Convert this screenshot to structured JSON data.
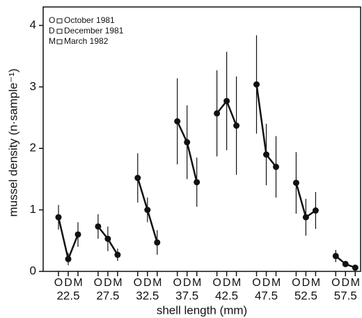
{
  "chart_data": {
    "type": "errorbar",
    "x_label": "shell length (mm)",
    "y_label": "mussel density (n·sample⁻¹)",
    "categories": [
      "22.5",
      "27.5",
      "32.5",
      "37.5",
      "42.5",
      "47.5",
      "52.5",
      "57.5"
    ],
    "series": [
      {
        "name": "October 1981",
        "label": "O",
        "color": "#111111",
        "values": [
          0.88,
          0.73,
          1.52,
          2.44,
          2.57,
          3.04,
          1.44,
          0.25
        ],
        "errors": [
          0.2,
          0.2,
          0.4,
          0.7,
          0.7,
          0.8,
          0.5,
          0.1
        ]
      },
      {
        "name": "December 1981",
        "label": "D",
        "color": "#111111",
        "values": [
          0.2,
          0.53,
          1.0,
          2.1,
          2.77,
          1.9,
          0.88,
          0.12
        ],
        "errors": [
          0.1,
          0.2,
          0.2,
          0.6,
          0.8,
          0.5,
          0.3,
          0.05
        ]
      },
      {
        "name": "March 1982",
        "label": "M",
        "color": "#111111",
        "values": [
          0.6,
          0.27,
          0.47,
          1.45,
          2.37,
          1.7,
          0.99,
          0.06
        ],
        "errors": [
          0.2,
          0.1,
          0.2,
          0.4,
          0.8,
          0.5,
          0.3,
          0.03
        ]
      }
    ],
    "ylim": [
      0,
      4.3
    ],
    "yticks": [
      0,
      1,
      2,
      3,
      4
    ],
    "legend": "upper left"
  }
}
